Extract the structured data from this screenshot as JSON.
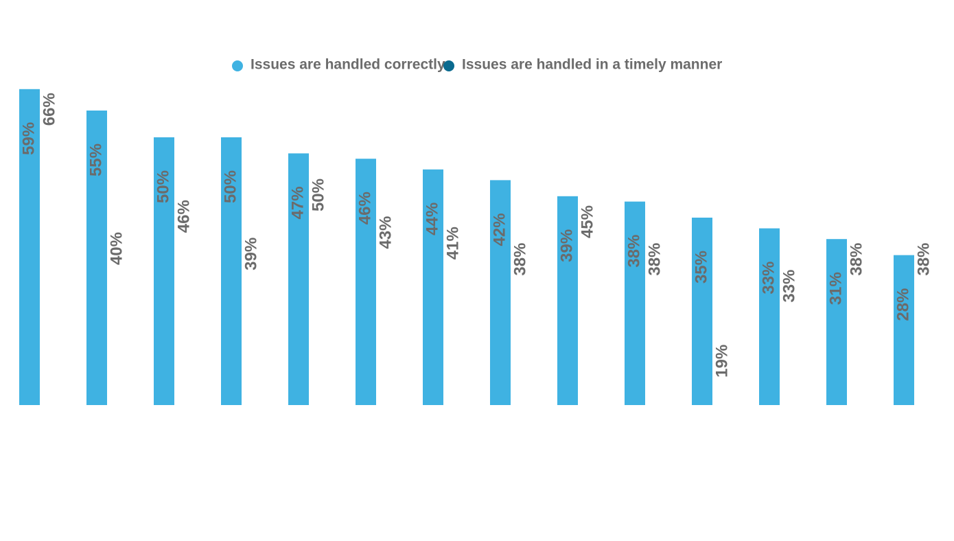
{
  "chart_data": {
    "type": "bar",
    "categories": [
      null,
      null,
      null,
      null,
      null,
      null,
      null,
      null,
      null,
      null,
      null,
      null,
      null,
      null
    ],
    "series": [
      {
        "name": "Issues are handled correctly",
        "color": "#3fb2e2",
        "values": [
          59,
          55,
          50,
          50,
          47,
          46,
          44,
          42,
          39,
          38,
          35,
          33,
          31,
          28
        ],
        "value_labels": [
          "59%",
          "55%",
          "50%",
          "50%",
          "47%",
          "46%",
          "44%",
          "42%",
          "39%",
          "38%",
          "35%",
          "33%",
          "31%",
          "28%"
        ]
      },
      {
        "name": "Issues are handled in a timely manner",
        "color": "#0a6a8f",
        "values": [
          66,
          40,
          46,
          39,
          50,
          43,
          41,
          38,
          45,
          38,
          19,
          33,
          38,
          38
        ],
        "value_labels": [
          "66%",
          "40%",
          "46%",
          "39%",
          "50%",
          "43%",
          "41%",
          "38%",
          "45%",
          "38%",
          "19%",
          "33%",
          "38%",
          "38%"
        ]
      }
    ],
    "ylim": [
      0,
      75
    ]
  }
}
